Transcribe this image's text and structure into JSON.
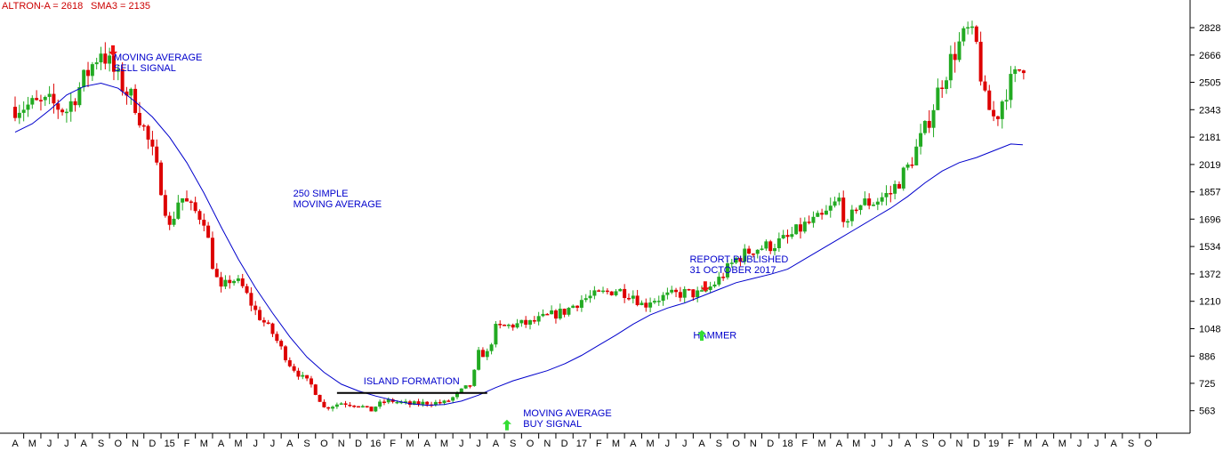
{
  "header": {
    "series_label": "ALTRON-A = 2618",
    "sma_label": "SMA3 = 2135"
  },
  "colors": {
    "up_candle": "#22aa22",
    "down_candle": "#dd0000",
    "moving_average": "#0000cc",
    "annotation_text": "#0000cc",
    "header_text": "#cc0000",
    "axis": "#000000",
    "buy_arrow": "#33dd33",
    "sell_arrow": "#ee1111"
  },
  "chart_data": {
    "type": "candlestick",
    "ylim": [
      430,
      2960
    ],
    "y_ticks": [
      563,
      725,
      886,
      1048,
      1210,
      1372,
      1534,
      1696,
      1857,
      2019,
      2181,
      2343,
      2505,
      2666,
      2828
    ],
    "x_ticks": [
      "A",
      "M",
      "J",
      "J",
      "A",
      "S",
      "O",
      "N",
      "D",
      "15",
      "F",
      "M",
      "A",
      "M",
      "J",
      "J",
      "A",
      "S",
      "O",
      "N",
      "D",
      "16",
      "F",
      "M",
      "A",
      "M",
      "J",
      "J",
      "A",
      "S",
      "O",
      "N",
      "D",
      "17",
      "F",
      "M",
      "A",
      "M",
      "J",
      "J",
      "A",
      "S",
      "O",
      "N",
      "D",
      "18",
      "F",
      "M",
      "A",
      "M",
      "J",
      "J",
      "A",
      "S",
      "O",
      "N",
      "D",
      "19",
      "F",
      "M",
      "A",
      "M",
      "J",
      "J",
      "A",
      "S",
      "O"
    ],
    "price_path": [
      [
        0,
        2360
      ],
      [
        2,
        2380
      ],
      [
        3,
        2340
      ],
      [
        4,
        2520
      ],
      [
        5,
        2700
      ],
      [
        6,
        2520
      ],
      [
        7,
        2380
      ],
      [
        8,
        2080
      ],
      [
        8.5,
        1890
      ],
      [
        9,
        1640
      ],
      [
        9.6,
        1840
      ],
      [
        10.2,
        1760
      ],
      [
        11,
        1700
      ],
      [
        11.6,
        1380
      ],
      [
        12,
        1270
      ],
      [
        12.6,
        1350
      ],
      [
        13.2,
        1300
      ],
      [
        14,
        1150
      ],
      [
        15,
        1020
      ],
      [
        16,
        840
      ],
      [
        16.7,
        760
      ],
      [
        17.3,
        710
      ],
      [
        17.8,
        620
      ],
      [
        18,
        580
      ],
      [
        19,
        610
      ],
      [
        20,
        600
      ],
      [
        20.7,
        560
      ],
      [
        21,
        590
      ],
      [
        21.6,
        620
      ],
      [
        22,
        620
      ],
      [
        23,
        600
      ],
      [
        24,
        610
      ],
      [
        25,
        610
      ],
      [
        25.5,
        640
      ],
      [
        26,
        680
      ],
      [
        26.6,
        720
      ],
      [
        27,
        900
      ],
      [
        27.5,
        900
      ],
      [
        28,
        1050
      ],
      [
        29,
        1070
      ],
      [
        30,
        1080
      ],
      [
        31,
        1120
      ],
      [
        32,
        1150
      ],
      [
        33,
        1220
      ],
      [
        34,
        1250
      ],
      [
        35,
        1280
      ],
      [
        36,
        1250
      ],
      [
        36.6,
        1180
      ],
      [
        37,
        1220
      ],
      [
        38,
        1240
      ],
      [
        39,
        1260
      ],
      [
        40,
        1250
      ],
      [
        41,
        1340
      ],
      [
        42,
        1460
      ],
      [
        43,
        1520
      ],
      [
        44,
        1540
      ],
      [
        45,
        1580
      ],
      [
        46,
        1660
      ],
      [
        47,
        1700
      ],
      [
        48,
        1810
      ],
      [
        48.5,
        1640
      ],
      [
        49,
        1780
      ],
      [
        50,
        1800
      ],
      [
        51,
        1850
      ],
      [
        52,
        2000
      ],
      [
        53,
        2220
      ],
      [
        54,
        2520
      ],
      [
        54.8,
        2700
      ],
      [
        55.5,
        2800
      ],
      [
        56,
        2720
      ],
      [
        56.5,
        2390
      ],
      [
        57.1,
        2280
      ],
      [
        57.7,
        2460
      ],
      [
        58.3,
        2540
      ],
      [
        58.7,
        2620
      ]
    ],
    "moving_average": [
      [
        0,
        2210
      ],
      [
        1,
        2260
      ],
      [
        2,
        2340
      ],
      [
        3,
        2430
      ],
      [
        4,
        2480
      ],
      [
        5,
        2500
      ],
      [
        6,
        2470
      ],
      [
        7,
        2390
      ],
      [
        8,
        2300
      ],
      [
        9,
        2180
      ],
      [
        10,
        2030
      ],
      [
        11,
        1850
      ],
      [
        12,
        1650
      ],
      [
        13,
        1460
      ],
      [
        14,
        1290
      ],
      [
        15,
        1140
      ],
      [
        16,
        1000
      ],
      [
        17,
        880
      ],
      [
        18,
        790
      ],
      [
        19,
        720
      ],
      [
        20,
        680
      ],
      [
        21,
        650
      ],
      [
        22,
        625
      ],
      [
        23,
        605
      ],
      [
        24,
        595
      ],
      [
        25,
        600
      ],
      [
        26,
        620
      ],
      [
        27,
        655
      ],
      [
        28,
        700
      ],
      [
        29,
        740
      ],
      [
        30,
        770
      ],
      [
        31,
        800
      ],
      [
        32,
        840
      ],
      [
        33,
        890
      ],
      [
        34,
        950
      ],
      [
        35,
        1010
      ],
      [
        36,
        1075
      ],
      [
        37,
        1130
      ],
      [
        38,
        1170
      ],
      [
        39,
        1200
      ],
      [
        40,
        1240
      ],
      [
        41,
        1280
      ],
      [
        42,
        1320
      ],
      [
        43,
        1345
      ],
      [
        44,
        1370
      ],
      [
        45,
        1400
      ],
      [
        46,
        1460
      ],
      [
        47,
        1520
      ],
      [
        48,
        1580
      ],
      [
        49,
        1640
      ],
      [
        50,
        1700
      ],
      [
        51,
        1760
      ],
      [
        52,
        1830
      ],
      [
        53,
        1910
      ],
      [
        54,
        1980
      ],
      [
        55,
        2030
      ],
      [
        56,
        2060
      ],
      [
        57,
        2100
      ],
      [
        58,
        2140
      ],
      [
        58.7,
        2135
      ]
    ],
    "annotations": [
      {
        "id": "sell-signal",
        "lines": [
          "MOVING AVERAGE",
          "SELL SIGNAL"
        ],
        "x": 5.75,
        "y": 2635,
        "arrow": "down",
        "arrow_x": 5.7,
        "arrow_y": 2660
      },
      {
        "id": "sma-label",
        "lines": [
          "250 SIMPLE",
          "MOVING AVERAGE"
        ],
        "x": 16.2,
        "y": 1830,
        "arrow": "none"
      },
      {
        "id": "island-formation",
        "lines": [
          "ISLAND FORMATION"
        ],
        "x": 20.3,
        "y": 720,
        "arrow": "none",
        "line_from_x": 18.75,
        "line_to_x": 27.5,
        "line_y": 668
      },
      {
        "id": "buy-signal",
        "lines": [
          "MOVING AVERAGE",
          "BUY SIGNAL"
        ],
        "x": 29.6,
        "y": 530,
        "arrow": "up",
        "arrow_x": 28.65,
        "arrow_y": 510
      },
      {
        "id": "report-published",
        "lines": [
          "REPORT PUBLISHED",
          "31 OCTOBER 2017"
        ],
        "x": 39.3,
        "y": 1440,
        "arrow": "down",
        "arrow_x": 40.2,
        "arrow_y": 1265
      },
      {
        "id": "hammer",
        "lines": [
          "HAMMER"
        ],
        "x": 39.5,
        "y": 990,
        "arrow": "up",
        "arrow_x": 40.0,
        "arrow_y": 1040
      }
    ]
  }
}
